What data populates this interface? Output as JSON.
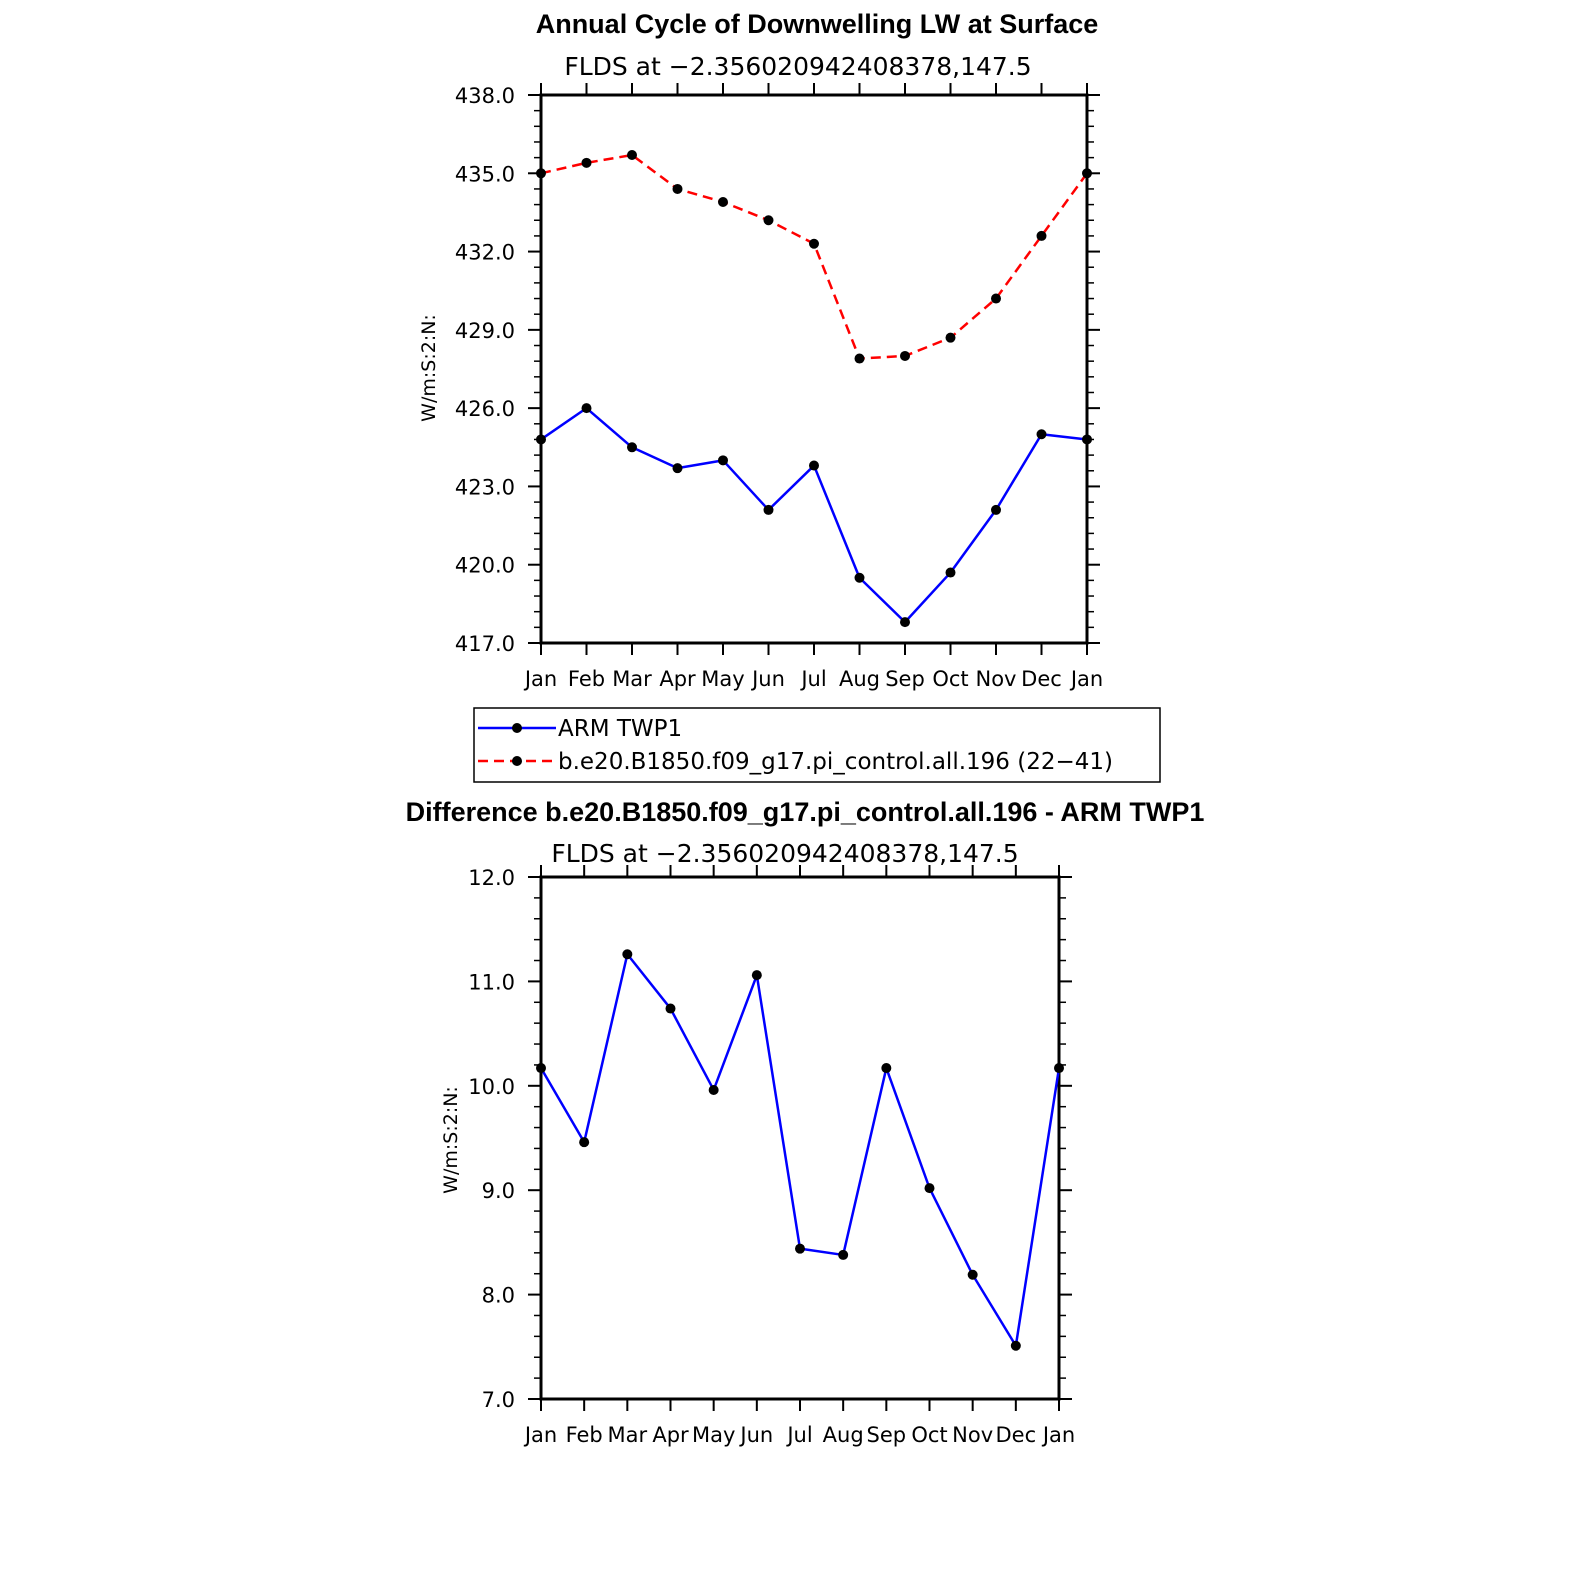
{
  "chart_data": [
    {
      "type": "line",
      "title": "Annual Cycle of Downwelling LW at Surface",
      "subtitle": "FLDS at −2.356020942408378,147.5",
      "xlabel": "",
      "ylabel": "W/m:S:2:N:",
      "categories": [
        "Jan",
        "Feb",
        "Mar",
        "Apr",
        "May",
        "Jun",
        "Jul",
        "Aug",
        "Sep",
        "Oct",
        "Nov",
        "Dec",
        "Jan"
      ],
      "ylim": [
        417.0,
        438.0
      ],
      "yticks": [
        "417.0",
        "420.0",
        "423.0",
        "426.0",
        "429.0",
        "432.0",
        "435.0",
        "438.0"
      ],
      "series": [
        {
          "name": "ARM TWP1",
          "color": "#0000ff",
          "dash": "solid",
          "values": [
            424.8,
            426.0,
            424.5,
            423.7,
            424.0,
            422.1,
            423.8,
            419.5,
            417.8,
            419.7,
            422.1,
            425.0,
            424.8
          ]
        },
        {
          "name": "b.e20.B1850.f09_g17.pi_control.all.196 (22−41)",
          "color": "#ff0000",
          "dash": "dashed",
          "values": [
            435.0,
            435.4,
            435.7,
            434.4,
            433.9,
            433.2,
            432.3,
            427.9,
            428.0,
            428.7,
            430.2,
            432.6,
            435.0
          ]
        }
      ],
      "grid": false,
      "legend": "below"
    },
    {
      "type": "line",
      "title": "Difference b.e20.B1850.f09_g17.pi_control.all.196 - ARM TWP1",
      "subtitle": "FLDS at −2.356020942408378,147.5",
      "xlabel": "",
      "ylabel": "W/m:S:2:N:",
      "categories": [
        "Jan",
        "Feb",
        "Mar",
        "Apr",
        "May",
        "Jun",
        "Jul",
        "Aug",
        "Sep",
        "Oct",
        "Nov",
        "Dec",
        "Jan"
      ],
      "ylim": [
        7.0,
        12.0
      ],
      "yticks": [
        "7.0",
        "8.0",
        "9.0",
        "10.0",
        "11.0",
        "12.0"
      ],
      "series": [
        {
          "color": "#0000ff",
          "dash": "solid",
          "values": [
            10.17,
            9.46,
            11.26,
            10.74,
            9.96,
            11.06,
            8.44,
            8.38,
            10.17,
            9.02,
            8.19,
            7.51,
            10.17
          ]
        }
      ],
      "grid": false
    }
  ]
}
